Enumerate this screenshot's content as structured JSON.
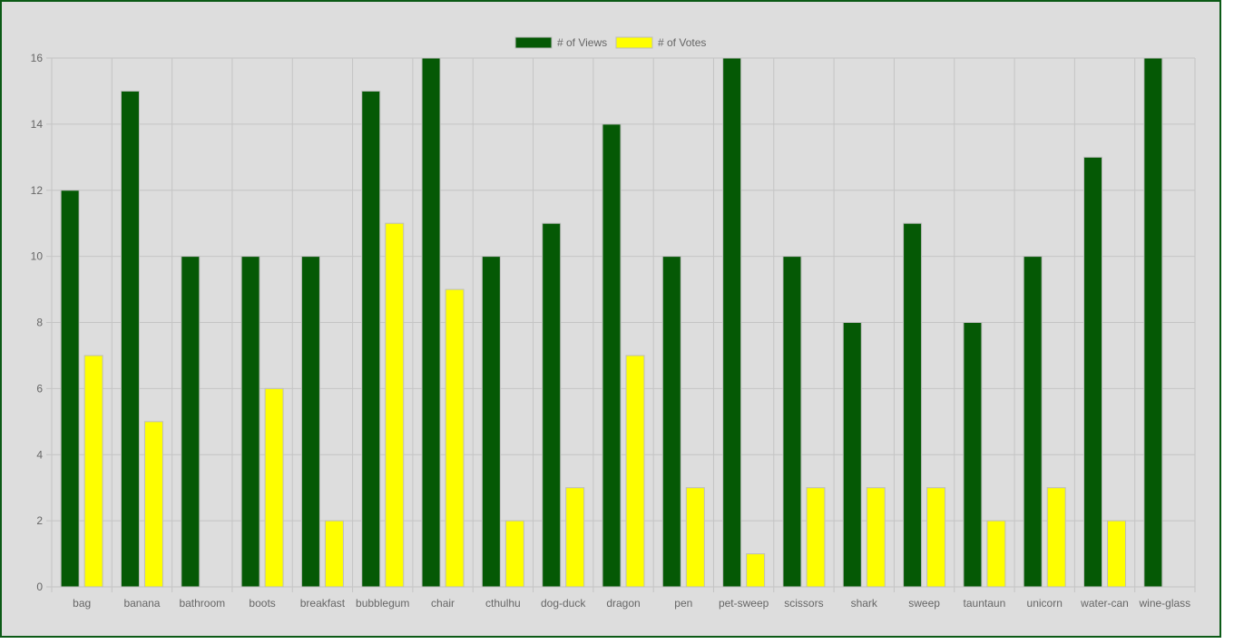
{
  "colors": {
    "frame_border": "#0b5a16",
    "background": "#dddddd",
    "grid": "#c4c4c4",
    "views": "#055905",
    "votes": "#ffff00",
    "bar_border": "#bdbdbd",
    "text": "#666666"
  },
  "chart_data": {
    "type": "bar",
    "categories": [
      "bag",
      "banana",
      "bathroom",
      "boots",
      "breakfast",
      "bubblegum",
      "chair",
      "cthulhu",
      "dog-duck",
      "dragon",
      "pen",
      "pet-sweep",
      "scissors",
      "shark",
      "sweep",
      "tauntaun",
      "unicorn",
      "water-can",
      "wine-glass"
    ],
    "series": [
      {
        "name": "# of Views",
        "color": "#055905",
        "values": [
          12,
          15,
          10,
          10,
          10,
          15,
          16,
          10,
          11,
          14,
          10,
          16,
          10,
          8,
          11,
          8,
          10,
          13,
          16
        ]
      },
      {
        "name": "# of Votes",
        "color": "#ffff00",
        "values": [
          7,
          5,
          0,
          6,
          2,
          11,
          9,
          2,
          3,
          7,
          3,
          1,
          3,
          3,
          3,
          2,
          3,
          2,
          0
        ]
      }
    ],
    "ylim": [
      0,
      16
    ],
    "y_ticks": [
      "0",
      "2",
      "4",
      "6",
      "8",
      "10",
      "12",
      "14",
      "16"
    ],
    "grid": true,
    "legend_position": "top-center"
  }
}
